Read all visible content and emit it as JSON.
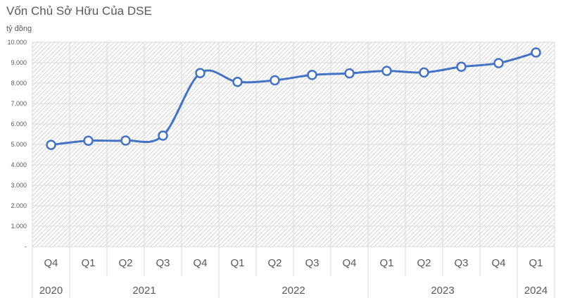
{
  "chart_data": {
    "type": "line",
    "title": "Vốn Chủ Sở Hữu Của DSE",
    "unit_label": "tỷ đồng",
    "y_ticks": [
      "-",
      "1.000",
      "2.000",
      "3.000",
      "4.000",
      "5.000",
      "6.000",
      "7.000",
      "8.000",
      "9.000",
      "10.000"
    ],
    "ylim": [
      0,
      10000
    ],
    "grid": true,
    "legend": "none",
    "categories": [
      "Q4",
      "Q1",
      "Q2",
      "Q3",
      "Q4",
      "Q1",
      "Q2",
      "Q3",
      "Q4",
      "Q1",
      "Q2",
      "Q3",
      "Q4",
      "Q1"
    ],
    "years": [
      {
        "label": "2020",
        "span": 1
      },
      {
        "label": "2021",
        "span": 4
      },
      {
        "label": "2022",
        "span": 4
      },
      {
        "label": "2023",
        "span": 4
      },
      {
        "label": "2024",
        "span": 1
      }
    ],
    "series": [
      {
        "values": [
          4980,
          5180,
          5190,
          5430,
          8490,
          8060,
          8140,
          8400,
          8480,
          8600,
          8520,
          8800,
          8980,
          9500
        ]
      }
    ],
    "colors": {
      "line": "#4472C4",
      "marker_fill": "#ffffff",
      "grid": "#d9d9d9",
      "hatch": "#d0d0d0",
      "text": "#595959"
    }
  }
}
